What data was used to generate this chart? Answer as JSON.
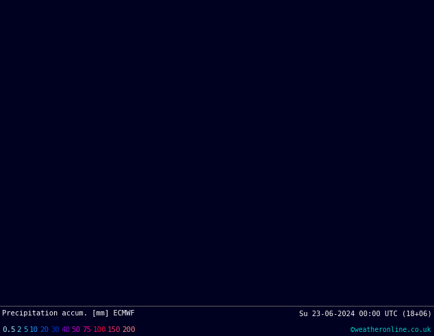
{
  "title_left": "Precipitation accum. [mm] ECMWF",
  "title_right": "Su 23-06-2024 00:00 UTC (18+06)",
  "colorbar_values": [
    "0.5",
    "2",
    "5",
    "10",
    "20",
    "30",
    "40",
    "50",
    "75",
    "100",
    "150",
    "200"
  ],
  "colorbar_colors_map": {
    "0.5": "#aaeeff",
    "2": "#66ddff",
    "5": "#33bbff",
    "10": "#2299ff",
    "20": "#1155dd",
    "30": "#0033bb",
    "40": "#8800cc",
    "50": "#cc00cc",
    "75": "#ff0099",
    "100": "#ff0044",
    "150": "#ee3366",
    "200": "#ff8888"
  },
  "watermark": "©weatheronline.co.uk",
  "map_ocean": "#e0f0ff",
  "map_land_mid": "#d8ecc8",
  "map_land_right": "#c8e0b0",
  "grid_color": "#bbbbbb",
  "contour_red": "#dd0000",
  "contour_blue": "#0044cc",
  "fig_width": 6.34,
  "fig_height": 4.9,
  "dpi": 100,
  "bottom_bg": "#000020",
  "label_white": "#ffffff",
  "label_cyan": "#00cccc"
}
